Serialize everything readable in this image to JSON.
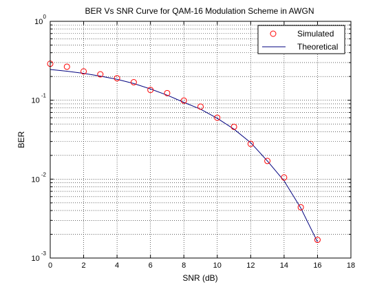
{
  "chart_data": {
    "type": "scatter",
    "title": "BER Vs SNR Curve for QAM-16 Modulation Scheme in AWGN",
    "xlabel": "SNR (dB)",
    "ylabel": "BER",
    "xlim": [
      0,
      18
    ],
    "ylim": [
      0.001,
      1
    ],
    "yscale": "log",
    "grid": true,
    "legend_position": "top-right",
    "x_ticks": [
      "0",
      "2",
      "4",
      "6",
      "8",
      "10",
      "12",
      "14",
      "16",
      "18"
    ],
    "y_ticks": [
      {
        "base": "10",
        "exp": "0"
      },
      {
        "base": "10",
        "exp": "-1"
      },
      {
        "base": "10",
        "exp": "-2"
      },
      {
        "base": "10",
        "exp": "-3"
      }
    ],
    "series": [
      {
        "name": "Simulated",
        "style": "markers",
        "marker": "circle-open",
        "color": "#ff0000",
        "x": [
          0,
          1,
          2,
          3,
          4,
          5,
          6,
          7,
          8,
          9,
          10,
          11,
          12,
          13,
          14,
          15,
          16
        ],
        "y": [
          0.29,
          0.266,
          0.232,
          0.213,
          0.19,
          0.169,
          0.135,
          0.123,
          0.099,
          0.083,
          0.06,
          0.046,
          0.028,
          0.017,
          0.0105,
          0.0044,
          0.0017
        ]
      },
      {
        "name": "Theoretical",
        "style": "line",
        "color": "#00007f",
        "x": [
          0,
          1,
          2,
          3,
          4,
          5,
          6,
          7,
          8,
          9,
          10,
          11,
          12,
          13,
          14,
          15,
          16
        ],
        "y": [
          0.245,
          0.233,
          0.219,
          0.202,
          0.184,
          0.163,
          0.139,
          0.116,
          0.094,
          0.077,
          0.059,
          0.043,
          0.029,
          0.017,
          0.0095,
          0.0043,
          0.0016
        ]
      }
    ]
  }
}
